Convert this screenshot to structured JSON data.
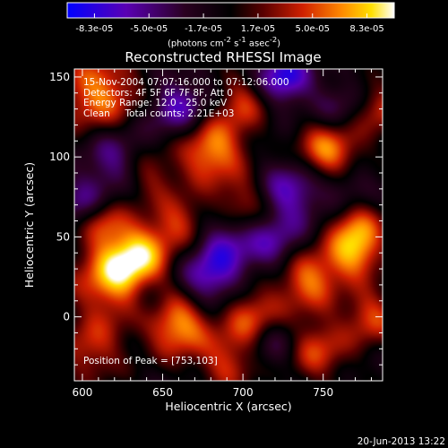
{
  "colorbar": {
    "tick_labels": [
      "-8.3e-05",
      "-5.0e-05",
      "-1.7e-05",
      "1.7e-05",
      "5.0e-05",
      "8.3e-05"
    ],
    "units_html": "(photons cm<sup>-2</sup> s<sup>-1</sup> asec<sup>-2</sup>)",
    "units_text": "(photons cm-2 s-1 asec-2)",
    "colors": [
      "#0000ff",
      "#5a00b4",
      "#2a0020",
      "#000000",
      "#5a0000",
      "#d02000",
      "#ff8a00",
      "#ffe000",
      "#ffffff"
    ]
  },
  "chart_data": {
    "type": "heatmap",
    "title": "Reconstructed RHESSI Image",
    "xlabel": "Heliocentric X (arcsec)",
    "ylabel": "Heliocentric Y (arcsec)",
    "xlim": [
      595,
      787
    ],
    "ylim": [
      -40,
      155
    ],
    "x_ticks": [
      600,
      650,
      700,
      750
    ],
    "y_ticks": [
      0,
      50,
      100,
      150
    ],
    "blobs": [
      {
        "x": 680,
        "y": 105,
        "w": 1.0,
        "r": 15
      },
      {
        "x": 753,
        "y": 103,
        "w": 1.0,
        "r": 14
      },
      {
        "x": 610,
        "y": 140,
        "w": 0.9,
        "r": 18
      },
      {
        "x": 620,
        "y": 25,
        "w": 1.0,
        "r": 18
      },
      {
        "x": 635,
        "y": 40,
        "w": 0.8,
        "r": 14
      },
      {
        "x": 605,
        "y": -20,
        "w": 0.6,
        "r": 14
      },
      {
        "x": 660,
        "y": -5,
        "w": 1.0,
        "r": 14
      },
      {
        "x": 705,
        "y": 0,
        "w": 0.8,
        "r": 14
      },
      {
        "x": 740,
        "y": 25,
        "w": 0.9,
        "r": 14
      },
      {
        "x": 770,
        "y": 40,
        "w": 0.9,
        "r": 12
      },
      {
        "x": 770,
        "y": 60,
        "w": 0.7,
        "r": 12
      },
      {
        "x": 660,
        "y": 60,
        "w": 0.6,
        "r": 12
      },
      {
        "x": 700,
        "y": 70,
        "w": 0.6,
        "r": 12
      },
      {
        "x": 745,
        "y": -20,
        "w": 0.7,
        "r": 14
      },
      {
        "x": 780,
        "y": 0,
        "w": 0.7,
        "r": 12
      },
      {
        "x": 700,
        "y": 135,
        "w": 0.6,
        "r": 12
      },
      {
        "x": 640,
        "y": 90,
        "w": 0.5,
        "r": 12
      },
      {
        "x": 785,
        "y": 130,
        "w": 0.6,
        "r": 12
      },
      {
        "x": 612,
        "y": 60,
        "w": 0.6,
        "r": 10
      },
      {
        "x": 690,
        "y": -30,
        "w": 0.6,
        "r": 12
      },
      {
        "x": 620,
        "y": 100,
        "w": -0.6,
        "r": 14
      },
      {
        "x": 680,
        "y": 25,
        "w": -0.8,
        "r": 14
      },
      {
        "x": 725,
        "y": 150,
        "w": -0.9,
        "r": 12
      },
      {
        "x": 660,
        "y": 130,
        "w": -0.7,
        "r": 14
      },
      {
        "x": 730,
        "y": 80,
        "w": -0.7,
        "r": 14
      },
      {
        "x": 720,
        "y": 45,
        "w": -0.6,
        "r": 14
      },
      {
        "x": 690,
        "y": 50,
        "w": -0.5,
        "r": 12
      },
      {
        "x": 600,
        "y": 70,
        "w": -0.5,
        "r": 12
      },
      {
        "x": 765,
        "y": 80,
        "w": -0.5,
        "r": 12
      },
      {
        "x": 640,
        "y": 10,
        "w": -0.4,
        "r": 10
      },
      {
        "x": 720,
        "y": -15,
        "w": -0.5,
        "r": 12
      },
      {
        "x": 760,
        "y": 130,
        "w": -0.4,
        "r": 12
      }
    ]
  },
  "info": {
    "line1": "15-Nov-2004 07:07:16.000 to 07:12:06.000",
    "line2": "Detectors: 4F 5F 6F 7F 8F, Att 0",
    "line3": "Energy Range: 12.0 - 25.0 keV",
    "line4": "Clean     Total counts: 2.21E+03"
  },
  "peak_label": "Position of Peak = [753,103]",
  "footer_date": "20-Jun-2013 13:22"
}
